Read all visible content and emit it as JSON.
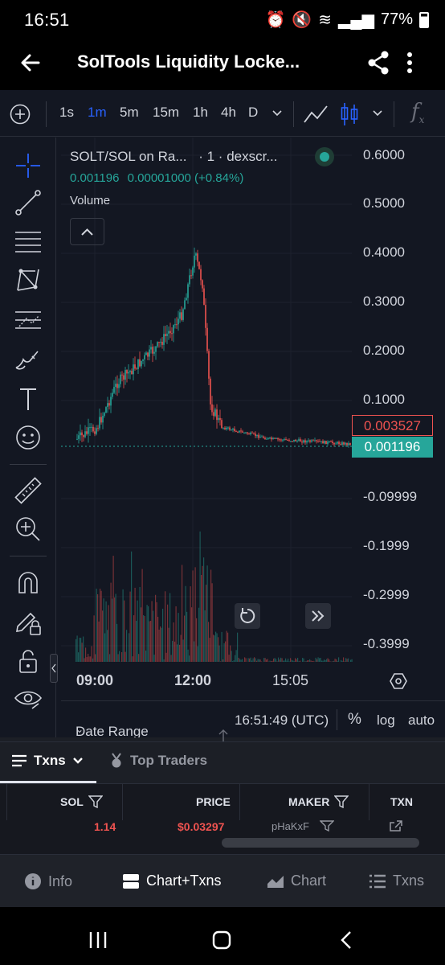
{
  "status_bar": {
    "time": "16:51",
    "battery": "77%"
  },
  "app_bar": {
    "title": "SolTools Liquidity Locke..."
  },
  "toolbar": {
    "timeframes": [
      "1s",
      "1m",
      "5m",
      "15m",
      "1h",
      "4h",
      "D"
    ],
    "active_timeframe": "1m"
  },
  "legend": {
    "symbol": "SOLT/SOL on Ra...",
    "interval": "· 1 · dexscr...",
    "price": "0.001196",
    "change": "0.00001000 (+0.84%)",
    "volume_label": "Volume"
  },
  "price_axis": [
    "0.6000",
    "0.5000",
    "0.4000",
    "0.3000",
    "0.2000",
    "0.1000",
    "-0.09999",
    "-0.1999",
    "-0.2999",
    "-0.3999"
  ],
  "price_tags": {
    "high_tag": "0.003527",
    "last_tag": "0.001196"
  },
  "time_axis": [
    "09:00",
    "12:00",
    "15:05"
  ],
  "chart_bottom": {
    "date_range": "Date Range",
    "clock": "16:51:49 (UTC)",
    "percent": "%",
    "log": "log",
    "auto": "auto"
  },
  "txn_tabs": {
    "txns": "Txns",
    "top_traders": "Top Traders"
  },
  "table": {
    "columns": [
      "SOL",
      "PRICE",
      "MAKER",
      "TXN"
    ],
    "row": {
      "sol": "1.14",
      "price": "$0.03297",
      "maker": "pHaKxF"
    }
  },
  "bottom_nav": [
    "Info",
    "Chart+Txns",
    "Chart",
    "Txns"
  ],
  "colors": {
    "up": "#26a69a",
    "down": "#ef5350",
    "accent": "#2962ff",
    "bg": "#131722"
  }
}
